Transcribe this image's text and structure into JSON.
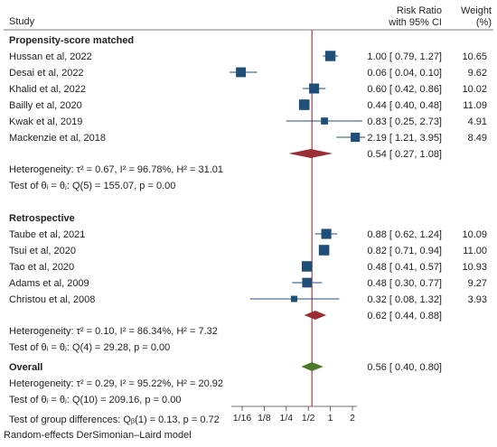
{
  "header": {
    "study": "Study",
    "rr_line1": "Risk Ratio",
    "rr_line2": "with 95% CI",
    "weight_line1": "Weight",
    "weight_line2": "(%)"
  },
  "footnote": "Random-effects DerSimonian–Laird model",
  "colors": {
    "study_box": "#1f4e79",
    "subgroup_diamond": "#9b2d35",
    "overall_diamond": "#4d7a2a",
    "reference_line": "#9b2d35",
    "ci_line": "#1f4e79"
  },
  "chart_data": {
    "type": "forest",
    "x_scale": "log2",
    "xlim": [
      0.0625,
      2
    ],
    "xticks": [
      "1/16",
      "1/8",
      "1/4",
      "1/2",
      "1",
      "2"
    ],
    "xtick_values": [
      0.0625,
      0.125,
      0.25,
      0.5,
      1,
      2
    ],
    "reference_value": 0.56,
    "groups": [
      {
        "name": "Propensity-score matched",
        "studies": [
          {
            "study": "Hussan et al, 2022",
            "rr": 1.0,
            "lo": 0.79,
            "hi": 1.27,
            "ci_text": "1.00 [ 0.79,  1.27]",
            "weight": 10.65,
            "weight_text": "10.65"
          },
          {
            "study": "Desai et al, 2022",
            "rr": 0.06,
            "lo": 0.04,
            "hi": 0.1,
            "ci_text": "0.06 [ 0.04,  0.10]",
            "weight": 9.62,
            "weight_text": "9.62"
          },
          {
            "study": "Khalid et al, 2022",
            "rr": 0.6,
            "lo": 0.42,
            "hi": 0.86,
            "ci_text": "0.60 [ 0.42,  0.86]",
            "weight": 10.02,
            "weight_text": "10.02"
          },
          {
            "study": "Bailly et al, 2020",
            "rr": 0.44,
            "lo": 0.4,
            "hi": 0.48,
            "ci_text": "0.44 [ 0.40,  0.48]",
            "weight": 11.09,
            "weight_text": "11.09"
          },
          {
            "study": "Kwak et al, 2019",
            "rr": 0.83,
            "lo": 0.25,
            "hi": 2.73,
            "ci_text": "0.83 [ 0.25,  2.73]",
            "weight": 4.91,
            "weight_text": "4.91"
          },
          {
            "study": "Mackenzie et al, 2018",
            "rr": 2.19,
            "lo": 1.21,
            "hi": 3.95,
            "ci_text": "2.19 [ 1.21,  3.95]",
            "weight": 8.49,
            "weight_text": "8.49"
          }
        ],
        "pooled": {
          "rr": 0.54,
          "lo": 0.27,
          "hi": 1.08,
          "ci_text": "0.54 [ 0.27,  1.08]"
        },
        "heterogeneity": "Heterogeneity: τ² = 0.67, I² = 96.78%, H² = 31.01",
        "test": "Test of θᵢ = θⱼ: Q(5) = 155.07, p = 0.00"
      },
      {
        "name": "Retrospective",
        "studies": [
          {
            "study": "Taube et al, 2021",
            "rr": 0.88,
            "lo": 0.62,
            "hi": 1.24,
            "ci_text": "0.88 [ 0.62,  1.24]",
            "weight": 10.09,
            "weight_text": "10.09"
          },
          {
            "study": "Tsui et al, 2020",
            "rr": 0.82,
            "lo": 0.71,
            "hi": 0.94,
            "ci_text": "0.82 [ 0.71,  0.94]",
            "weight": 11.0,
            "weight_text": "11.00"
          },
          {
            "study": "Tao et al, 2020",
            "rr": 0.48,
            "lo": 0.41,
            "hi": 0.57,
            "ci_text": "0.48 [ 0.41,  0.57]",
            "weight": 10.93,
            "weight_text": "10.93"
          },
          {
            "study": "Adams et al, 2009",
            "rr": 0.48,
            "lo": 0.3,
            "hi": 0.77,
            "ci_text": "0.48 [ 0.30,  0.77]",
            "weight": 9.27,
            "weight_text": "9.27"
          },
          {
            "study": "Christou et al, 2008",
            "rr": 0.32,
            "lo": 0.08,
            "hi": 1.32,
            "ci_text": "0.32 [ 0.08,  1.32]",
            "weight": 3.93,
            "weight_text": "3.93"
          }
        ],
        "pooled": {
          "rr": 0.62,
          "lo": 0.44,
          "hi": 0.88,
          "ci_text": "0.62 [ 0.44,  0.88]"
        },
        "heterogeneity": "Heterogeneity: τ² = 0.10, I² = 86.34%, H² = 7.32",
        "test": "Test of θᵢ = θⱼ: Q(4) = 29.28, p = 0.00"
      }
    ],
    "overall": {
      "label": "Overall",
      "rr": 0.56,
      "lo": 0.4,
      "hi": 0.8,
      "ci_text": "0.56 [ 0.40,  0.80]",
      "heterogeneity": "Heterogeneity: τ² = 0.29, I² = 95.22%, H² = 20.92",
      "test": "Test of θᵢ = θⱼ: Q(10) = 209.16, p = 0.00",
      "group_test": "Test of group differences: Qᵦ(1) = 0.13, p = 0.72"
    }
  }
}
